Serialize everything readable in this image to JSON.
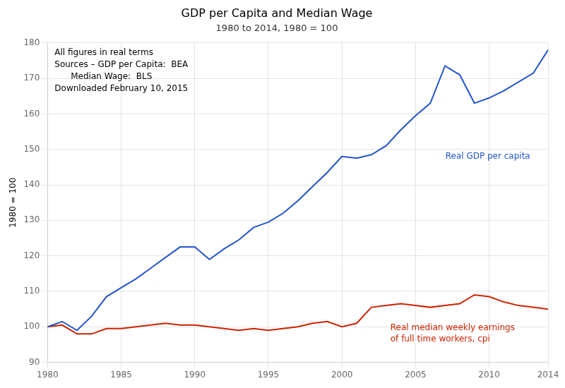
{
  "chart_data": {
    "type": "line",
    "title": "GDP per Capita and Median Wage",
    "subtitle": "1980 to 2014, 1980 = 100",
    "ylabel": "1980 = 100",
    "annotations": [
      "All figures in real terms",
      "Sources – GDP per Capita:  BEA",
      "      Median Wage:  BLS",
      "Downloaded February 10, 2015"
    ],
    "x": [
      1980,
      1981,
      1982,
      1983,
      1984,
      1985,
      1986,
      1987,
      1988,
      1989,
      1990,
      1991,
      1992,
      1993,
      1994,
      1995,
      1996,
      1997,
      1998,
      1999,
      2000,
      2001,
      2002,
      2003,
      2004,
      2005,
      2006,
      2007,
      2008,
      2009,
      2010,
      2011,
      2012,
      2013,
      2014
    ],
    "series": [
      {
        "name": "Real GDP per capita",
        "color": "#2255cc",
        "values": [
          100,
          101.5,
          99.0,
          103.0,
          108.5,
          111.0,
          113.5,
          116.5,
          119.5,
          122.5,
          122.5,
          119.0,
          122.0,
          124.5,
          128.0,
          129.5,
          132.0,
          135.5,
          139.5,
          143.5,
          148.0,
          147.5,
          148.5,
          151.0,
          155.5,
          159.5,
          163.0,
          173.5,
          171.0,
          163.0,
          164.5,
          166.5,
          169.0,
          171.5,
          178.0
        ]
      },
      {
        "name": "Real median weekly earnings\nof full time workers, cpi",
        "color": "#cc2200",
        "values": [
          100,
          100.5,
          98.0,
          98.0,
          99.5,
          99.5,
          100.0,
          100.5,
          101.0,
          100.5,
          100.5,
          100.0,
          99.5,
          99.0,
          99.5,
          99.0,
          99.5,
          100.0,
          101.0,
          101.5,
          100.0,
          101.0,
          105.5,
          106.0,
          106.5,
          106.0,
          105.5,
          106.0,
          106.5,
          109.0,
          108.5,
          107.0,
          106.0,
          105.5,
          105.0
        ]
      }
    ],
    "xlim": [
      1980,
      2014
    ],
    "xticks": [
      1980,
      1985,
      1990,
      1995,
      2000,
      2005,
      2010,
      2014
    ],
    "ylim": [
      90,
      180
    ],
    "yticks": [
      90,
      100,
      110,
      120,
      130,
      140,
      150,
      160,
      170,
      180
    ],
    "grid": true
  }
}
